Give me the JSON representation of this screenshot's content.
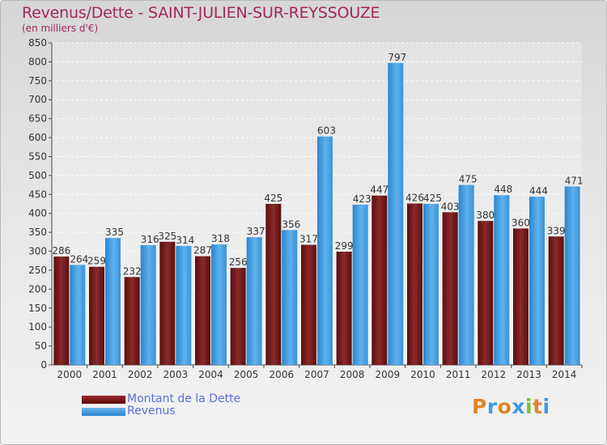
{
  "header": {
    "title": "Revenus/Dette - SAINT-JULIEN-SUR-REYSSOUZE",
    "subtitle": "(en milliers d'€)"
  },
  "legend": {
    "debt_label": "Montant de la Dette",
    "revenue_label": "Revenus"
  },
  "logo": {
    "text": "Proxiti"
  },
  "colors": {
    "title": "#a0285a",
    "debt": "#7a1c1c",
    "revenue": "#3d9be0",
    "legend_text": "#5a6fe0"
  },
  "chart_data": {
    "type": "bar",
    "title": "Revenus/Dette - SAINT-JULIEN-SUR-REYSSOUZE",
    "ylabel": "(en milliers d'€)",
    "xlabel": "",
    "categories": [
      "2000",
      "2001",
      "2002",
      "2003",
      "2004",
      "2005",
      "2006",
      "2007",
      "2008",
      "2009",
      "2010",
      "2011",
      "2012",
      "2013",
      "2014"
    ],
    "series": [
      {
        "name": "Montant de la Dette",
        "values": [
          286,
          259,
          232,
          325,
          287,
          256,
          425,
          317,
          299,
          447,
          426,
          403,
          380,
          360,
          339
        ]
      },
      {
        "name": "Revenus",
        "values": [
          264,
          335,
          316,
          314,
          318,
          337,
          356,
          603,
          423,
          797,
          425,
          475,
          448,
          444,
          471
        ]
      }
    ],
    "ylim": [
      0,
      850
    ],
    "yticks": [
      0,
      50,
      100,
      150,
      200,
      250,
      300,
      350,
      400,
      450,
      500,
      550,
      600,
      650,
      700,
      750,
      800,
      850
    ],
    "grid": true,
    "legend_position": "bottom-left"
  }
}
